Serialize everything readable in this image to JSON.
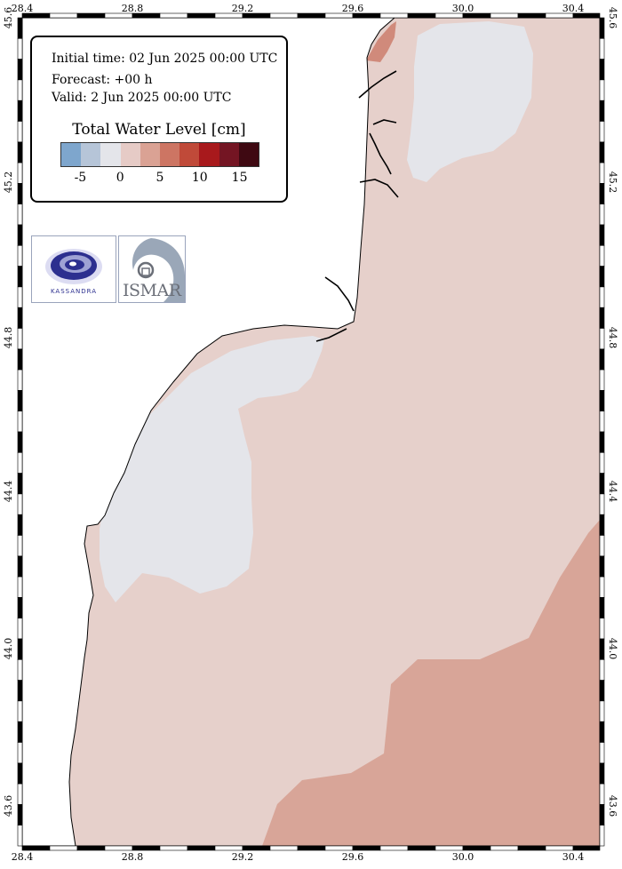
{
  "header": {
    "initial_time": "Initial time: 02 Jun 2025 00:00 UTC",
    "forecast": "Forecast: +00 h",
    "valid": "Valid:  2 Jun 2025 00:00 UTC"
  },
  "legend": {
    "title": "Total Water Level [cm]",
    "colors": [
      "#7ea6cd",
      "#b6c5d8",
      "#e4e5ea",
      "#e6cbc6",
      "#daa294",
      "#cd7563",
      "#c04a39",
      "#a8191c",
      "#741523",
      "#3f0912"
    ],
    "ticks": [
      "-5",
      "0",
      "5",
      "10",
      "15"
    ]
  },
  "axes": {
    "lon_ticks": [
      "28.4",
      "28.8",
      "29.2",
      "29.6",
      "30.0",
      "30.4"
    ],
    "lat_ticks": [
      "45.6",
      "45.2",
      "44.8",
      "44.4",
      "44.0",
      "43.6"
    ]
  },
  "logos": {
    "left": "kassandra-logo",
    "right": "ismar-logo",
    "left_text": "KASSANDRA",
    "right_text": "ISMAR"
  },
  "colors": {
    "land": "#ffffff",
    "sea_base": "#e6d0cb",
    "sea_low": "#e4e5ea",
    "sea_high": "#d8a598",
    "sea_peak": "#d08a7b",
    "coast": "#000000"
  }
}
